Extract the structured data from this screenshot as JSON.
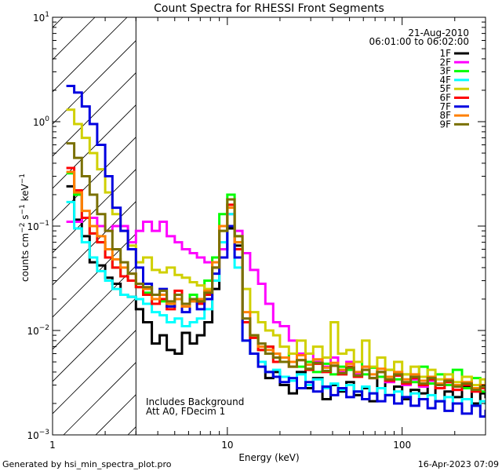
{
  "chart_data": {
    "type": "line",
    "title": "Count Spectra for RHESSI Front Segments",
    "xlabel": "Energy (keV)",
    "ylabel_parts": [
      "counts cm",
      "−2",
      " s",
      "−1",
      " keV",
      "−1"
    ],
    "x_scale": "log",
    "y_scale": "log",
    "xlim": [
      1,
      300
    ],
    "ylim": [
      0.001,
      10
    ],
    "x_ticks": [
      {
        "value": 1,
        "label": "1"
      },
      {
        "value": 10,
        "label": "10"
      },
      {
        "value": 100,
        "label": "100"
      }
    ],
    "y_ticks": [
      {
        "value": 10,
        "base": "10",
        "exp": "1"
      },
      {
        "value": 1,
        "base": "10",
        "exp": "0"
      },
      {
        "value": 0.1,
        "base": "10",
        "exp": "−1"
      },
      {
        "value": 0.01,
        "base": "10",
        "exp": "−2"
      },
      {
        "value": 0.001,
        "base": "10",
        "exp": "−3"
      }
    ],
    "excluded_region": {
      "xmax": 3.0
    },
    "annotations": {
      "date": "21-Aug-2010",
      "time_range": "06:01:00 to 06:02:00",
      "note1": "Includes Background",
      "note2": "Att A0, FDecim 1"
    },
    "series": [
      {
        "name": "1F",
        "color": "#000000",
        "energies": [
          1.2,
          1.33,
          1.47,
          1.63,
          1.8,
          2.0,
          2.2,
          2.45,
          2.7,
          3.0,
          3.3,
          3.7,
          4.1,
          4.5,
          5.0,
          5.5,
          6.1,
          6.7,
          7.4,
          8.2,
          9.0,
          10.0,
          11.0,
          12.2,
          13.5,
          15.0,
          16.5,
          18.3,
          20.0,
          22.5,
          25.0,
          28.0,
          31.0,
          35.0,
          39.0,
          43.0,
          48.0,
          53.0,
          59.0,
          65.0,
          72.0,
          80.0,
          90.0,
          100.0,
          112.0,
          125.0,
          140.0,
          155.0,
          175.0,
          195.0,
          220.0,
          250.0,
          280.0,
          300.0
        ],
        "values": [
          0.24,
          0.115,
          0.08,
          0.045,
          0.042,
          0.032,
          0.028,
          0.022,
          0.021,
          0.016,
          0.012,
          0.0075,
          0.009,
          0.0065,
          0.006,
          0.0095,
          0.0075,
          0.009,
          0.012,
          0.025,
          0.06,
          0.095,
          0.065,
          0.012,
          0.006,
          0.005,
          0.0035,
          0.004,
          0.003,
          0.0025,
          0.004,
          0.0028,
          0.0035,
          0.0022,
          0.003,
          0.0026,
          0.0032,
          0.0024,
          0.0028,
          0.0021,
          0.0036,
          0.0024,
          0.0029,
          0.0022,
          0.0027,
          0.0025,
          0.0033,
          0.0021,
          0.0026,
          0.0023,
          0.0029,
          0.002,
          0.0025,
          0.0023
        ]
      },
      {
        "name": "2F",
        "color": "#ff00ff",
        "energies": [
          1.2,
          1.33,
          1.47,
          1.63,
          1.8,
          2.0,
          2.2,
          2.45,
          2.7,
          3.0,
          3.3,
          3.7,
          4.1,
          4.5,
          5.0,
          5.5,
          6.1,
          6.7,
          7.4,
          8.2,
          9.0,
          10.0,
          11.0,
          12.2,
          13.5,
          15.0,
          16.5,
          18.3,
          20.0,
          22.5,
          25.0,
          28.0,
          31.0,
          35.0,
          39.0,
          43.0,
          48.0,
          53.0,
          59.0,
          65.0,
          72.0,
          80.0,
          90.0,
          100.0,
          112.0,
          125.0,
          140.0,
          155.0,
          175.0,
          195.0,
          220.0,
          250.0,
          280.0,
          300.0
        ],
        "values": [
          0.11,
          0.11,
          0.12,
          0.12,
          0.1,
          0.09,
          0.1,
          0.1,
          0.07,
          0.09,
          0.11,
          0.09,
          0.11,
          0.08,
          0.07,
          0.06,
          0.055,
          0.05,
          0.045,
          0.05,
          0.06,
          0.13,
          0.09,
          0.055,
          0.038,
          0.028,
          0.018,
          0.012,
          0.011,
          0.008,
          0.006,
          0.006,
          0.005,
          0.0045,
          0.0055,
          0.004,
          0.005,
          0.0038,
          0.0045,
          0.0035,
          0.004,
          0.0032,
          0.0037,
          0.003,
          0.0034,
          0.0029,
          0.0033,
          0.0028,
          0.0032,
          0.0027,
          0.003,
          0.0026,
          0.0028,
          0.0027
        ]
      },
      {
        "name": "3F",
        "color": "#00ff00",
        "energies": [
          1.2,
          1.33,
          1.47,
          1.63,
          1.8,
          2.0,
          2.2,
          2.45,
          2.7,
          3.0,
          3.3,
          3.7,
          4.1,
          4.5,
          5.0,
          5.5,
          6.1,
          6.7,
          7.4,
          8.2,
          9.0,
          10.0,
          11.0,
          12.2,
          13.5,
          15.0,
          16.5,
          18.3,
          20.0,
          22.5,
          25.0,
          28.0,
          31.0,
          35.0,
          39.0,
          43.0,
          48.0,
          53.0,
          59.0,
          65.0,
          72.0,
          80.0,
          90.0,
          100.0,
          112.0,
          125.0,
          140.0,
          155.0,
          175.0,
          195.0,
          220.0,
          250.0,
          280.0,
          300.0
        ],
        "values": [
          0.32,
          0.2,
          0.12,
          0.085,
          0.07,
          0.05,
          0.04,
          0.033,
          0.03,
          0.026,
          0.023,
          0.018,
          0.019,
          0.017,
          0.02,
          0.018,
          0.022,
          0.019,
          0.03,
          0.05,
          0.13,
          0.2,
          0.07,
          0.012,
          0.009,
          0.0065,
          0.007,
          0.006,
          0.0055,
          0.006,
          0.0045,
          0.005,
          0.004,
          0.0048,
          0.0038,
          0.0045,
          0.0042,
          0.005,
          0.0038,
          0.0044,
          0.0036,
          0.0042,
          0.0034,
          0.0038,
          0.0032,
          0.0045,
          0.0031,
          0.0038,
          0.003,
          0.0042,
          0.0028,
          0.0035,
          0.0026,
          0.0029
        ]
      },
      {
        "name": "4F",
        "color": "#00ffff",
        "energies": [
          1.2,
          1.33,
          1.47,
          1.63,
          1.8,
          2.0,
          2.2,
          2.45,
          2.7,
          3.0,
          3.3,
          3.7,
          4.1,
          4.5,
          5.0,
          5.5,
          6.1,
          6.7,
          7.4,
          8.2,
          9.0,
          10.0,
          11.0,
          12.2,
          13.5,
          15.0,
          16.5,
          18.3,
          20.0,
          22.5,
          25.0,
          28.0,
          31.0,
          35.0,
          39.0,
          43.0,
          48.0,
          53.0,
          59.0,
          65.0,
          72.0,
          80.0,
          90.0,
          100.0,
          112.0,
          125.0,
          140.0,
          155.0,
          175.0,
          195.0,
          220.0,
          250.0,
          280.0,
          300.0
        ],
        "values": [
          0.17,
          0.095,
          0.07,
          0.05,
          0.037,
          0.03,
          0.025,
          0.022,
          0.021,
          0.02,
          0.018,
          0.015,
          0.014,
          0.012,
          0.013,
          0.011,
          0.012,
          0.013,
          0.016,
          0.03,
          0.07,
          0.13,
          0.04,
          0.008,
          0.006,
          0.005,
          0.004,
          0.0042,
          0.0036,
          0.0033,
          0.0038,
          0.003,
          0.0034,
          0.0028,
          0.0031,
          0.0027,
          0.003,
          0.0026,
          0.0029,
          0.0025,
          0.0028,
          0.0024,
          0.0026,
          0.0023,
          0.0025,
          0.0022,
          0.0024,
          0.0021,
          0.0023,
          0.002,
          0.0022,
          0.0019,
          0.0021,
          0.002
        ]
      },
      {
        "name": "5F",
        "color": "#d0d000",
        "energies": [
          1.2,
          1.33,
          1.47,
          1.63,
          1.8,
          2.0,
          2.2,
          2.45,
          2.7,
          3.0,
          3.3,
          3.7,
          4.1,
          4.5,
          5.0,
          5.5,
          6.1,
          6.7,
          7.4,
          8.2,
          9.0,
          10.0,
          11.0,
          12.2,
          13.5,
          15.0,
          16.5,
          18.3,
          20.0,
          22.5,
          25.0,
          28.0,
          31.0,
          35.0,
          39.0,
          43.0,
          48.0,
          53.0,
          59.0,
          65.0,
          72.0,
          80.0,
          90.0,
          100.0,
          112.0,
          125.0,
          140.0,
          155.0,
          175.0,
          195.0,
          220.0,
          250.0,
          280.0,
          300.0
        ],
        "values": [
          1.3,
          0.95,
          0.7,
          0.5,
          0.35,
          0.21,
          0.13,
          0.09,
          0.065,
          0.045,
          0.05,
          0.038,
          0.036,
          0.04,
          0.034,
          0.032,
          0.029,
          0.027,
          0.025,
          0.04,
          0.09,
          0.16,
          0.08,
          0.025,
          0.015,
          0.012,
          0.01,
          0.009,
          0.007,
          0.006,
          0.008,
          0.006,
          0.007,
          0.0055,
          0.012,
          0.006,
          0.0065,
          0.005,
          0.008,
          0.0045,
          0.0055,
          0.0042,
          0.005,
          0.0038,
          0.0045,
          0.0036,
          0.0042,
          0.0034,
          0.0038,
          0.0032,
          0.0036,
          0.003,
          0.0034,
          0.0031
        ]
      },
      {
        "name": "6F",
        "color": "#ff0000",
        "energies": [
          1.2,
          1.33,
          1.47,
          1.63,
          1.8,
          2.0,
          2.2,
          2.45,
          2.7,
          3.0,
          3.3,
          3.7,
          4.1,
          4.5,
          5.0,
          5.5,
          6.1,
          6.7,
          7.4,
          8.2,
          9.0,
          10.0,
          11.0,
          12.2,
          13.5,
          15.0,
          16.5,
          18.3,
          20.0,
          22.5,
          25.0,
          28.0,
          31.0,
          35.0,
          39.0,
          43.0,
          48.0,
          53.0,
          59.0,
          65.0,
          72.0,
          80.0,
          90.0,
          100.0,
          112.0,
          125.0,
          140.0,
          155.0,
          175.0,
          195.0,
          220.0,
          250.0,
          280.0,
          300.0
        ],
        "values": [
          0.36,
          0.22,
          0.12,
          0.085,
          0.07,
          0.05,
          0.04,
          0.033,
          0.03,
          0.026,
          0.022,
          0.018,
          0.02,
          0.016,
          0.024,
          0.017,
          0.02,
          0.018,
          0.022,
          0.04,
          0.1,
          0.16,
          0.06,
          0.012,
          0.0085,
          0.0065,
          0.007,
          0.005,
          0.0055,
          0.0045,
          0.0052,
          0.0042,
          0.0048,
          0.004,
          0.0046,
          0.0038,
          0.0045,
          0.0036,
          0.0042,
          0.0035,
          0.004,
          0.0033,
          0.0037,
          0.0031,
          0.0035,
          0.003,
          0.0034,
          0.0028,
          0.0032,
          0.0027,
          0.003,
          0.0026,
          0.0028,
          0.0027
        ]
      },
      {
        "name": "7F",
        "color": "#0000e0",
        "energies": [
          1.2,
          1.33,
          1.47,
          1.63,
          1.8,
          2.0,
          2.2,
          2.45,
          2.7,
          3.0,
          3.3,
          3.7,
          4.1,
          4.5,
          5.0,
          5.5,
          6.1,
          6.7,
          7.4,
          8.2,
          9.0,
          10.0,
          11.0,
          12.2,
          13.5,
          15.0,
          16.5,
          18.3,
          20.0,
          22.5,
          25.0,
          28.0,
          31.0,
          35.0,
          39.0,
          43.0,
          48.0,
          53.0,
          59.0,
          65.0,
          72.0,
          80.0,
          90.0,
          100.0,
          112.0,
          125.0,
          140.0,
          155.0,
          175.0,
          195.0,
          220.0,
          250.0,
          280.0,
          300.0
        ],
        "values": [
          2.2,
          1.9,
          1.4,
          0.95,
          0.6,
          0.3,
          0.15,
          0.09,
          0.06,
          0.04,
          0.028,
          0.022,
          0.025,
          0.017,
          0.02,
          0.015,
          0.019,
          0.016,
          0.02,
          0.035,
          0.05,
          0.1,
          0.05,
          0.008,
          0.006,
          0.0045,
          0.004,
          0.0036,
          0.0032,
          0.0035,
          0.0028,
          0.0032,
          0.0026,
          0.0029,
          0.0024,
          0.0028,
          0.0023,
          0.0026,
          0.0022,
          0.0025,
          0.0021,
          0.0024,
          0.002,
          0.0023,
          0.0019,
          0.0022,
          0.0018,
          0.0021,
          0.0017,
          0.002,
          0.0016,
          0.0019,
          0.0015,
          0.0017
        ]
      },
      {
        "name": "8F",
        "color": "#ff8000",
        "energies": [
          1.2,
          1.33,
          1.47,
          1.63,
          1.8,
          2.0,
          2.2,
          2.45,
          2.7,
          3.0,
          3.3,
          3.7,
          4.1,
          4.5,
          5.0,
          5.5,
          6.1,
          6.7,
          7.4,
          8.2,
          9.0,
          10.0,
          11.0,
          12.2,
          13.5,
          15.0,
          16.5,
          18.3,
          20.0,
          22.5,
          25.0,
          28.0,
          31.0,
          35.0,
          39.0,
          43.0,
          48.0,
          53.0,
          59.0,
          65.0,
          72.0,
          80.0,
          90.0,
          100.0,
          112.0,
          125.0,
          140.0,
          155.0,
          175.0,
          195.0,
          220.0,
          250.0,
          280.0,
          300.0
        ],
        "values": [
          0.33,
          0.21,
          0.14,
          0.1,
          0.08,
          0.06,
          0.048,
          0.04,
          0.035,
          0.028,
          0.025,
          0.02,
          0.022,
          0.018,
          0.02,
          0.017,
          0.019,
          0.02,
          0.024,
          0.045,
          0.1,
          0.15,
          0.07,
          0.015,
          0.009,
          0.007,
          0.0065,
          0.006,
          0.0055,
          0.005,
          0.0058,
          0.0047,
          0.0053,
          0.0044,
          0.0049,
          0.0042,
          0.0048,
          0.004,
          0.0045,
          0.0038,
          0.0043,
          0.0036,
          0.004,
          0.0034,
          0.0038,
          0.0033,
          0.0036,
          0.0031,
          0.0034,
          0.003,
          0.0032,
          0.0028,
          0.003,
          0.0029
        ]
      },
      {
        "name": "9F",
        "color": "#7a7000",
        "energies": [
          1.2,
          1.33,
          1.47,
          1.63,
          1.8,
          2.0,
          2.2,
          2.45,
          2.7,
          3.0,
          3.3,
          3.7,
          4.1,
          4.5,
          5.0,
          5.5,
          6.1,
          6.7,
          7.4,
          8.2,
          9.0,
          10.0,
          11.0,
          12.2,
          13.5,
          15.0,
          16.5,
          18.3,
          20.0,
          22.5,
          25.0,
          28.0,
          31.0,
          35.0,
          39.0,
          43.0,
          48.0,
          53.0,
          59.0,
          65.0,
          72.0,
          80.0,
          90.0,
          100.0,
          112.0,
          125.0,
          140.0,
          155.0,
          175.0,
          195.0,
          220.0,
          250.0,
          280.0,
          300.0
        ],
        "values": [
          0.62,
          0.45,
          0.3,
          0.2,
          0.13,
          0.09,
          0.06,
          0.045,
          0.035,
          0.028,
          0.026,
          0.022,
          0.024,
          0.019,
          0.022,
          0.018,
          0.02,
          0.019,
          0.023,
          0.04,
          0.09,
          0.18,
          0.08,
          0.013,
          0.009,
          0.0075,
          0.006,
          0.0055,
          0.005,
          0.0045,
          0.0052,
          0.0043,
          0.0049,
          0.0041,
          0.0046,
          0.0039,
          0.0044,
          0.0037,
          0.0042,
          0.0035,
          0.004,
          0.0034,
          0.0038,
          0.0032,
          0.0036,
          0.0031,
          0.0035,
          0.003,
          0.0033,
          0.0029,
          0.0031,
          0.0027,
          0.0029,
          0.0028
        ]
      }
    ]
  },
  "footer": {
    "generator": "Generated by hsi_min_spectra_plot.pro",
    "timestamp": "16-Apr-2023 07:09"
  }
}
